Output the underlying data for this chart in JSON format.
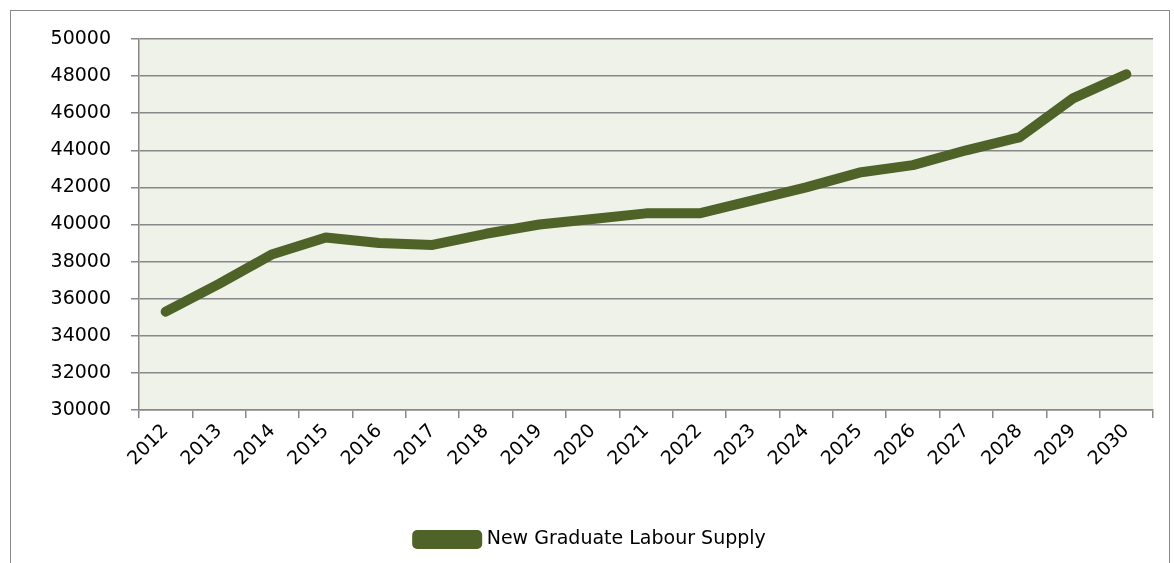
{
  "chart_data": {
    "type": "line",
    "categories": [
      "2012",
      "2013",
      "2014",
      "2015",
      "2016",
      "2017",
      "2018",
      "2019",
      "2020",
      "2021",
      "2022",
      "2023",
      "2024",
      "2025",
      "2026",
      "2027",
      "2028",
      "2029",
      "2030"
    ],
    "series": [
      {
        "name": "New Graduate Labour Supply",
        "color": "#4f6228",
        "values": [
          35300,
          36800,
          38400,
          39300,
          39000,
          38900,
          39500,
          40000,
          40300,
          40600,
          40600,
          41300,
          42000,
          42800,
          43200,
          44000,
          44700,
          46800,
          48100
        ]
      }
    ],
    "ylim": [
      30000,
      50000
    ],
    "yticks": [
      30000,
      32000,
      34000,
      36000,
      38000,
      40000,
      42000,
      44000,
      46000,
      48000,
      50000
    ],
    "grid": "y",
    "legend": "bottom",
    "marker": "none",
    "line_style": "solid"
  }
}
